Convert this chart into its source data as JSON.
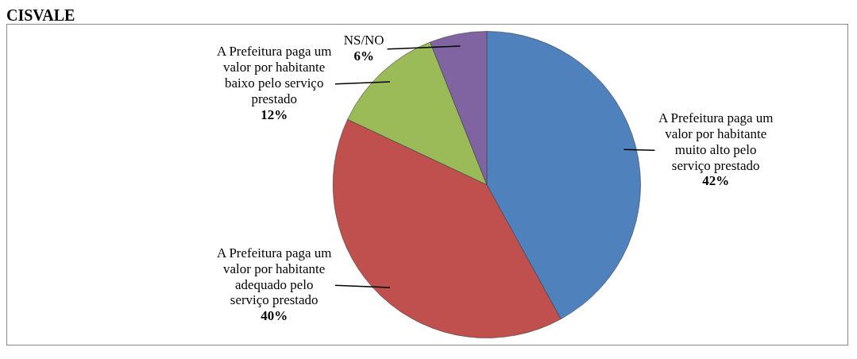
{
  "chart_data": {
    "type": "pie",
    "title": "CISVALE",
    "categories": [
      "A Prefeitura paga um valor por habitante muito alto pelo serviço prestado",
      "A Prefeitura paga um valor por habitante adequado pelo serviço prestado",
      "A Prefeitura paga um valor por habitante baixo pelo serviço prestado",
      "NS/NO"
    ],
    "values": [
      42,
      40,
      12,
      6
    ],
    "colors": [
      "#4f81bd",
      "#c0504d",
      "#9bbb59",
      "#8064a2"
    ],
    "value_labels": [
      "42%",
      "40%",
      "12%",
      "6%"
    ],
    "legend": false
  }
}
